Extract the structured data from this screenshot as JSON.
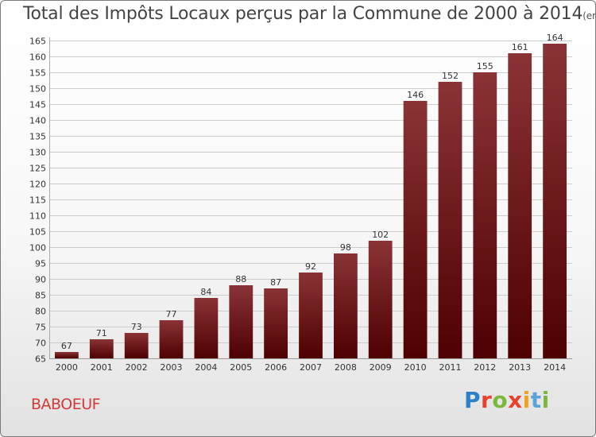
{
  "header": {
    "title": "Total des Impôts Locaux perçus par la Commune de 2000 à 2014",
    "unit": "(en milliers d'€)"
  },
  "footer": {
    "commune": "BABOEUF",
    "logo": [
      "P",
      "r",
      "o",
      "x",
      "i",
      "t",
      "i"
    ]
  },
  "colors": {
    "bar_top": "#8a3336",
    "bar_bottom": "#4e0000",
    "grid": "#cccccc",
    "title": "#444444",
    "commune": "#d33a3a"
  },
  "chart_data": {
    "type": "bar",
    "title": "Total des Impôts Locaux perçus par la Commune de 2000 à 2014",
    "xlabel": "",
    "ylabel": "",
    "ylim": [
      65,
      165
    ],
    "yticks": [
      65,
      70,
      75,
      80,
      85,
      90,
      95,
      100,
      105,
      110,
      115,
      120,
      125,
      130,
      135,
      140,
      145,
      150,
      155,
      160,
      165
    ],
    "categories": [
      "2000",
      "2001",
      "2002",
      "2003",
      "2004",
      "2005",
      "2006",
      "2007",
      "2008",
      "2009",
      "2010",
      "2011",
      "2012",
      "2013",
      "2014"
    ],
    "values": [
      67,
      71,
      73,
      77,
      84,
      88,
      87,
      92,
      98,
      102,
      146,
      152,
      155,
      161,
      164
    ]
  }
}
